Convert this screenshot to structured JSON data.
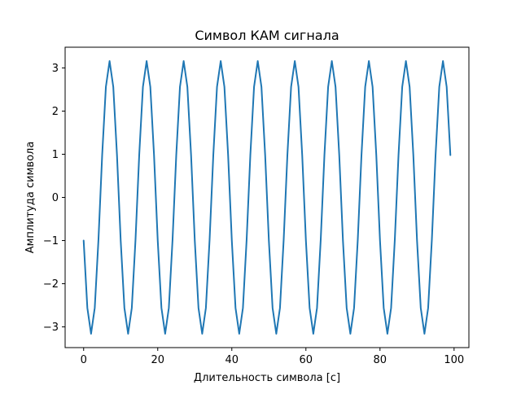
{
  "chart_data": {
    "type": "line",
    "title": "Символ КАМ сигнала",
    "xlabel": "Длительность символа [с]",
    "ylabel": "Амплитуда символа",
    "xlim": [
      -5,
      104
    ],
    "ylim": [
      -3.48,
      3.48
    ],
    "xticks": [
      0,
      20,
      40,
      60,
      80,
      100
    ],
    "xtick_labels": [
      "0",
      "20",
      "40",
      "60",
      "80",
      "100"
    ],
    "yticks": [
      -3,
      -2,
      -1,
      0,
      1,
      2,
      3
    ],
    "ytick_labels": [
      "−3",
      "−2",
      "−1",
      "0",
      "1",
      "2",
      "3"
    ],
    "grid": false,
    "legend": "none",
    "color": "#1f77b4",
    "series": [
      {
        "x": [
          0,
          1,
          2,
          3,
          4,
          5,
          6,
          7,
          8,
          9,
          10,
          11,
          12,
          13,
          14,
          15,
          16,
          17,
          18,
          19,
          20,
          21,
          22,
          23,
          24,
          25,
          26,
          27,
          28,
          29,
          30,
          31,
          32,
          33,
          34,
          35,
          36,
          37,
          38,
          39,
          40,
          41,
          42,
          43,
          44,
          45,
          46,
          47,
          48,
          49,
          50,
          51,
          52,
          53,
          54,
          55,
          56,
          57,
          58,
          59,
          60,
          61,
          62,
          63,
          64,
          65,
          66,
          67,
          68,
          69,
          70,
          71,
          72,
          73,
          74,
          75,
          76,
          77,
          78,
          79,
          80,
          81,
          82,
          83,
          84,
          85,
          86,
          87,
          88,
          89,
          90,
          91,
          92,
          93,
          94,
          95,
          96,
          97,
          98,
          99
        ],
        "values": [
          -1.0,
          -2.56,
          -3.16,
          -2.56,
          -0.98,
          0.98,
          2.56,
          3.16,
          2.56,
          0.98,
          -1.0,
          -2.56,
          -3.16,
          -2.56,
          -0.98,
          0.98,
          2.56,
          3.16,
          2.56,
          0.98,
          -1.0,
          -2.56,
          -3.16,
          -2.56,
          -0.98,
          0.98,
          2.56,
          3.16,
          2.56,
          0.98,
          -1.0,
          -2.56,
          -3.16,
          -2.56,
          -0.98,
          0.98,
          2.56,
          3.16,
          2.56,
          0.98,
          -1.0,
          -2.56,
          -3.16,
          -2.56,
          -0.98,
          0.98,
          2.56,
          3.16,
          2.56,
          0.98,
          -1.0,
          -2.56,
          -3.16,
          -2.56,
          -0.98,
          0.98,
          2.56,
          3.16,
          2.56,
          0.98,
          -1.0,
          -2.56,
          -3.16,
          -2.56,
          -0.98,
          0.98,
          2.56,
          3.16,
          2.56,
          0.98,
          -1.0,
          -2.56,
          -3.16,
          -2.56,
          -0.98,
          0.98,
          2.56,
          3.16,
          2.56,
          0.98,
          -1.0,
          -2.56,
          -3.16,
          -2.56,
          -0.98,
          0.98,
          2.56,
          3.16,
          2.56,
          0.98,
          -1.0,
          -2.56,
          -3.16,
          -2.56,
          -0.98,
          0.98,
          2.56,
          3.16,
          2.56,
          0.98
        ]
      }
    ]
  }
}
